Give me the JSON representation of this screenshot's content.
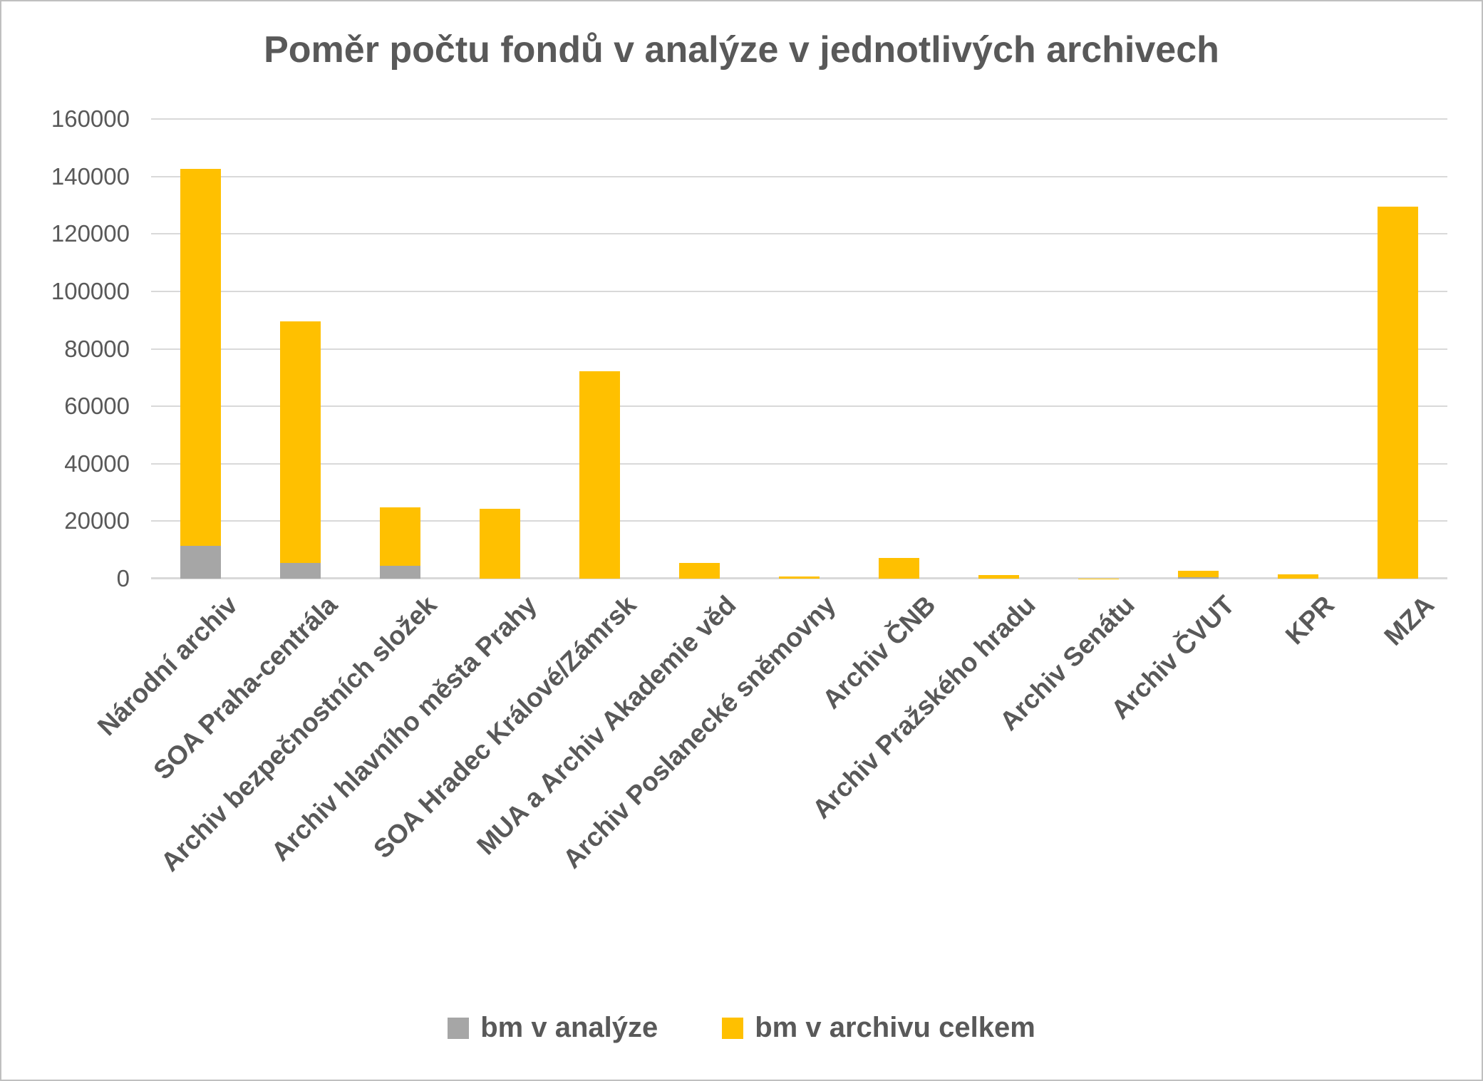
{
  "chart_data": {
    "type": "bar",
    "stacked": true,
    "title": "Poměr počtu fondů v analýze v jednotlivých archivech",
    "categories": [
      "Národní archiv",
      "SOA Praha-centrála",
      "Archiv bezpečnostních složek",
      "Archiv hlavního města Prahy",
      "SOA Hradec Králové/Zámrsk",
      "MUA a Archiv Akademie věd",
      "Archiv Poslanecké sněmovny",
      "Archiv ČNB",
      "Archiv Pražského hradu",
      "Archiv Senátu",
      "Archiv ČVUT",
      "KPR",
      "MZA"
    ],
    "series": [
      {
        "name": "bm v analýze",
        "color": "#A6A6A6",
        "values": [
          11300,
          5400,
          4400,
          0,
          0,
          0,
          0,
          0,
          0,
          0,
          400,
          0,
          0
        ]
      },
      {
        "name": "bm v archivu celkem",
        "color": "#FFC000",
        "values": [
          131400,
          84200,
          20400,
          24300,
          72300,
          5400,
          800,
          7300,
          1300,
          100,
          2300,
          1600,
          129600
        ]
      }
    ],
    "stack_totals": [
      142700,
      89600,
      24800,
      24300,
      72300,
      5400,
      800,
      7300,
      1300,
      100,
      2700,
      1600,
      129600
    ],
    "ylim": [
      0,
      160000
    ],
    "ytick_step": 20000,
    "ytick_labels": [
      "0",
      "20000",
      "40000",
      "60000",
      "80000",
      "100000",
      "120000",
      "140000",
      "160000"
    ],
    "xlabel": "",
    "ylabel": "",
    "grid": true,
    "legend_position": "bottom"
  },
  "style_colors": {
    "bar_gray": "#A6A6A6",
    "bar_yellow": "#FFC000",
    "text": "#595959",
    "gridline": "#D9D9D9",
    "frame_border": "#BFBFBF",
    "background": "#FFFFFF"
  }
}
